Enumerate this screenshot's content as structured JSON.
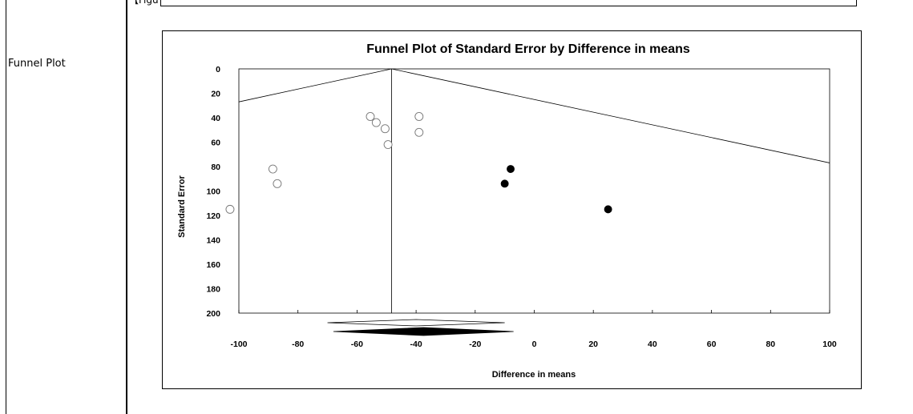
{
  "page": {
    "side_label": "Funnel Plot",
    "caption_fragment": "【Figu"
  },
  "chart_data": {
    "type": "scatter",
    "title": "Funnel Plot of Standard Error by Difference in means",
    "xlabel": "Difference in means",
    "ylabel": "Standard Error",
    "xlim": [
      -100,
      100
    ],
    "ylim": [
      0,
      200
    ],
    "y_inverted": true,
    "grid": false,
    "xticks": [
      -100,
      -80,
      -60,
      -40,
      -20,
      0,
      20,
      40,
      60,
      80,
      100
    ],
    "yticks": [
      0,
      20,
      40,
      60,
      80,
      100,
      120,
      140,
      160,
      180,
      200
    ],
    "center_line_x": -48.3,
    "series": [
      {
        "marker": "open-circle",
        "points": [
          {
            "x": -55.5,
            "y": 39
          },
          {
            "x": -53.5,
            "y": 44
          },
          {
            "x": -50.5,
            "y": 49
          },
          {
            "x": -49.5,
            "y": 62
          },
          {
            "x": -39,
            "y": 39
          },
          {
            "x": -39,
            "y": 52
          },
          {
            "x": -88.5,
            "y": 82
          },
          {
            "x": -87,
            "y": 94
          },
          {
            "x": -103,
            "y": 115
          }
        ]
      },
      {
        "marker": "filled-circle",
        "points": [
          {
            "x": -8,
            "y": 82
          },
          {
            "x": -10,
            "y": 94
          },
          {
            "x": 25,
            "y": 115
          }
        ]
      }
    ],
    "diamonds": [
      {
        "type": "open",
        "x_low": -70,
        "x_high": -10,
        "y": 205
      },
      {
        "type": "filled",
        "x_low": -68,
        "x_high": -7,
        "y": 213
      }
    ]
  }
}
